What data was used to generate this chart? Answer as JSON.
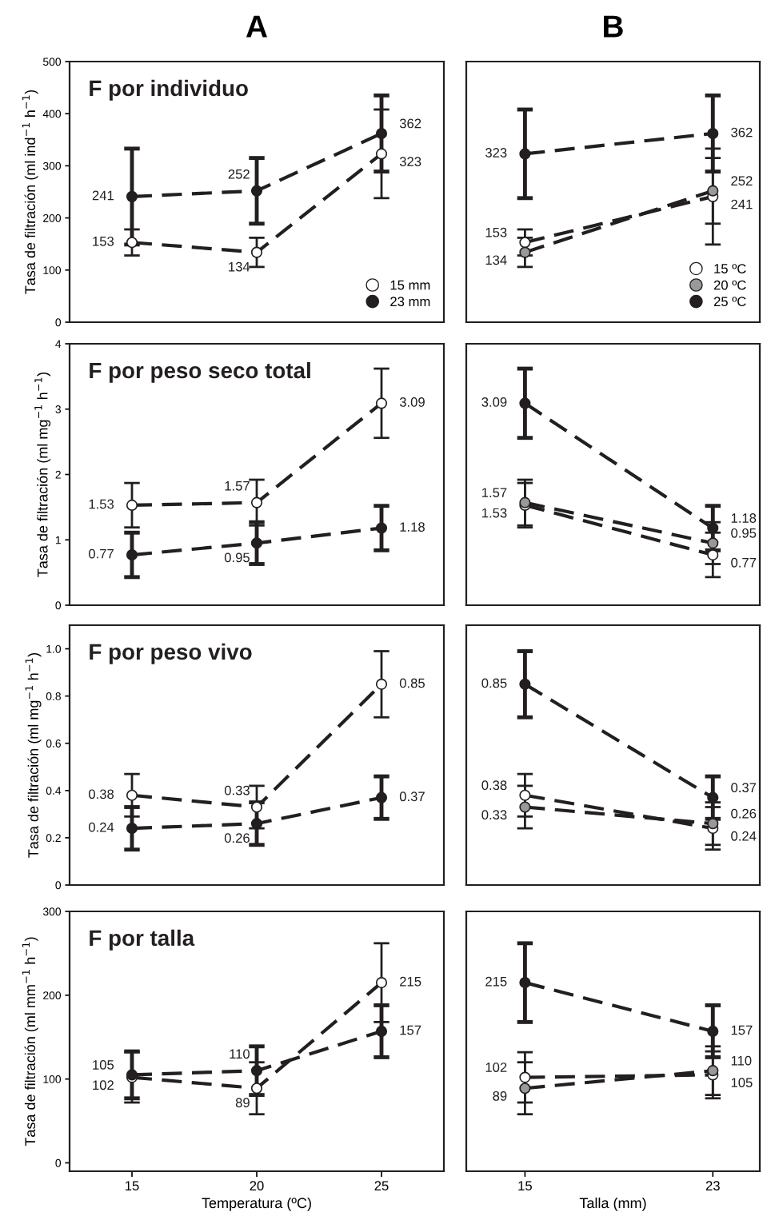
{
  "chart_data": [
    {
      "type": "line",
      "title": "A",
      "subtitle": "F por individuo",
      "ylabel": "Tasa de filtración (ml ind$^{−1}$ h$^{−1}$)",
      "x": [
        15,
        20,
        25
      ],
      "xlim": [
        12.5,
        27.5
      ],
      "ylim": [
        0,
        500
      ],
      "yticks": [
        0,
        100,
        200,
        300,
        400,
        500
      ],
      "tick_labels": "y",
      "marker": "circle",
      "line_style": "dashed",
      "data_labels": true,
      "legend": "bottom right",
      "series": [
        {
          "name": "15 mm",
          "color": "#ffffff",
          "values": [
            153,
            134,
            323
          ],
          "errors": [
            25,
            28,
            85
          ]
        },
        {
          "name": "23 mm",
          "color": "#231f20",
          "values": [
            241,
            252,
            362
          ],
          "errors": [
            92,
            63,
            73
          ]
        }
      ]
    },
    {
      "type": "line",
      "title": "B",
      "x": [
        15,
        23
      ],
      "xlim": [
        12.5,
        25
      ],
      "ylim": [
        0,
        500
      ],
      "tick_labels": false,
      "marker": "circle",
      "line_style": "dashed",
      "data_labels": true,
      "legend": "bottom right",
      "series": [
        {
          "name": "15 ºC",
          "color": "#ffffff",
          "values": [
            153,
            241
          ],
          "errors": [
            25,
            92
          ]
        },
        {
          "name": "20 ºC",
          "color": "#999999",
          "values": [
            134,
            252
          ],
          "errors": [
            28,
            63
          ]
        },
        {
          "name": "25 ºC",
          "color": "#231f20",
          "values": [
            323,
            362
          ],
          "errors": [
            85,
            73
          ]
        }
      ]
    },
    {
      "type": "line",
      "subtitle": "F por peso seco total",
      "ylabel": "Tasa de filtración (ml mg$^{−1}$ h$^{−1}$)",
      "x": [
        15,
        20,
        25
      ],
      "xlim": [
        12.5,
        27.5
      ],
      "ylim": [
        0,
        4
      ],
      "yticks": [
        0,
        1,
        2,
        3,
        4
      ],
      "tick_labels": "y",
      "marker": "circle",
      "line_style": "dashed",
      "data_labels": true,
      "series": [
        {
          "color": "#ffffff",
          "values": [
            1.53,
            1.57,
            3.09
          ],
          "errors": [
            0.34,
            0.35,
            0.53
          ]
        },
        {
          "color": "#231f20",
          "values": [
            0.77,
            0.95,
            1.18
          ],
          "errors": [
            0.34,
            0.32,
            0.34
          ]
        }
      ]
    },
    {
      "type": "line",
      "x": [
        15,
        23
      ],
      "xlim": [
        12.5,
        25
      ],
      "ylim": [
        0,
        4
      ],
      "tick_labels": false,
      "marker": "circle",
      "line_style": "dashed",
      "data_labels": true,
      "series": [
        {
          "color": "#ffffff",
          "values": [
            1.53,
            0.77
          ],
          "errors": [
            0.34,
            0.34
          ]
        },
        {
          "color": "#999999",
          "values": [
            1.57,
            0.95
          ],
          "errors": [
            0.35,
            0.32
          ]
        },
        {
          "color": "#231f20",
          "values": [
            3.09,
            1.18
          ],
          "errors": [
            0.53,
            0.34
          ]
        }
      ]
    },
    {
      "type": "line",
      "subtitle": "F por peso vivo",
      "ylabel": "Tasa de filtración (ml mg$^{−1}$ h$^{−1}$)",
      "x": [
        15,
        20,
        25
      ],
      "xlim": [
        12.5,
        27.5
      ],
      "ylim": [
        0,
        1.1
      ],
      "yticks": [
        0,
        0.2,
        0.4,
        0.6,
        0.8,
        {
          "value": 1.0,
          "label": "1.0"
        }
      ],
      "tick_labels": "y",
      "marker": "circle",
      "line_style": "dashed",
      "data_labels": true,
      "series": [
        {
          "color": "#ffffff",
          "values": [
            0.38,
            0.33,
            0.85
          ],
          "errors": [
            0.09,
            0.09,
            0.14
          ]
        },
        {
          "color": "#231f20",
          "values": [
            0.24,
            0.26,
            0.37
          ],
          "errors": [
            0.09,
            0.09,
            0.09
          ]
        }
      ]
    },
    {
      "type": "line",
      "x": [
        15,
        23
      ],
      "xlim": [
        12.5,
        25
      ],
      "ylim": [
        0,
        1.1
      ],
      "tick_labels": false,
      "marker": "circle",
      "line_style": "dashed",
      "data_labels": true,
      "series": [
        {
          "color": "#ffffff",
          "values": [
            0.38,
            0.24
          ],
          "errors": [
            0.09,
            0.09
          ]
        },
        {
          "color": "#999999",
          "values": [
            0.33,
            0.26
          ],
          "errors": [
            0.09,
            0.09
          ]
        },
        {
          "color": "#231f20",
          "values": [
            0.85,
            0.37
          ],
          "errors": [
            0.14,
            0.09
          ]
        }
      ]
    },
    {
      "type": "line",
      "subtitle": "F por talla",
      "xlabel": "Temperatura (ºC)",
      "ylabel": "Tasa de filtración (ml mm$^{−1}$ h$^{−1}$)",
      "x": [
        15,
        20,
        25
      ],
      "xlim": [
        12.5,
        27.5
      ],
      "xticks": [
        15,
        20,
        25
      ],
      "ylim": [
        -10,
        300
      ],
      "yticks": [
        0,
        100,
        200,
        300
      ],
      "marker": "circle",
      "line_style": "dashed",
      "data_labels": true,
      "series": [
        {
          "color": "#ffffff",
          "values": [
            102,
            89,
            215
          ],
          "errors": [
            30,
            31,
            47
          ]
        },
        {
          "color": "#231f20",
          "values": [
            105,
            110,
            157
          ],
          "errors": [
            28,
            29,
            31
          ]
        }
      ]
    },
    {
      "type": "line",
      "xlabel": "Talla (mm)",
      "x": [
        15,
        23
      ],
      "xlim": [
        12.5,
        25
      ],
      "xticks": [
        15,
        23
      ],
      "ylim": [
        -10,
        300
      ],
      "tick_labels": "x",
      "marker": "circle",
      "line_style": "dashed",
      "data_labels": true,
      "series": [
        {
          "color": "#ffffff",
          "values": [
            102,
            105
          ],
          "errors": [
            30,
            28
          ]
        },
        {
          "color": "#999999",
          "values": [
            89,
            110
          ],
          "errors": [
            31,
            29
          ]
        },
        {
          "color": "#231f20",
          "values": [
            215,
            157
          ],
          "errors": [
            47,
            31
          ]
        }
      ]
    }
  ]
}
